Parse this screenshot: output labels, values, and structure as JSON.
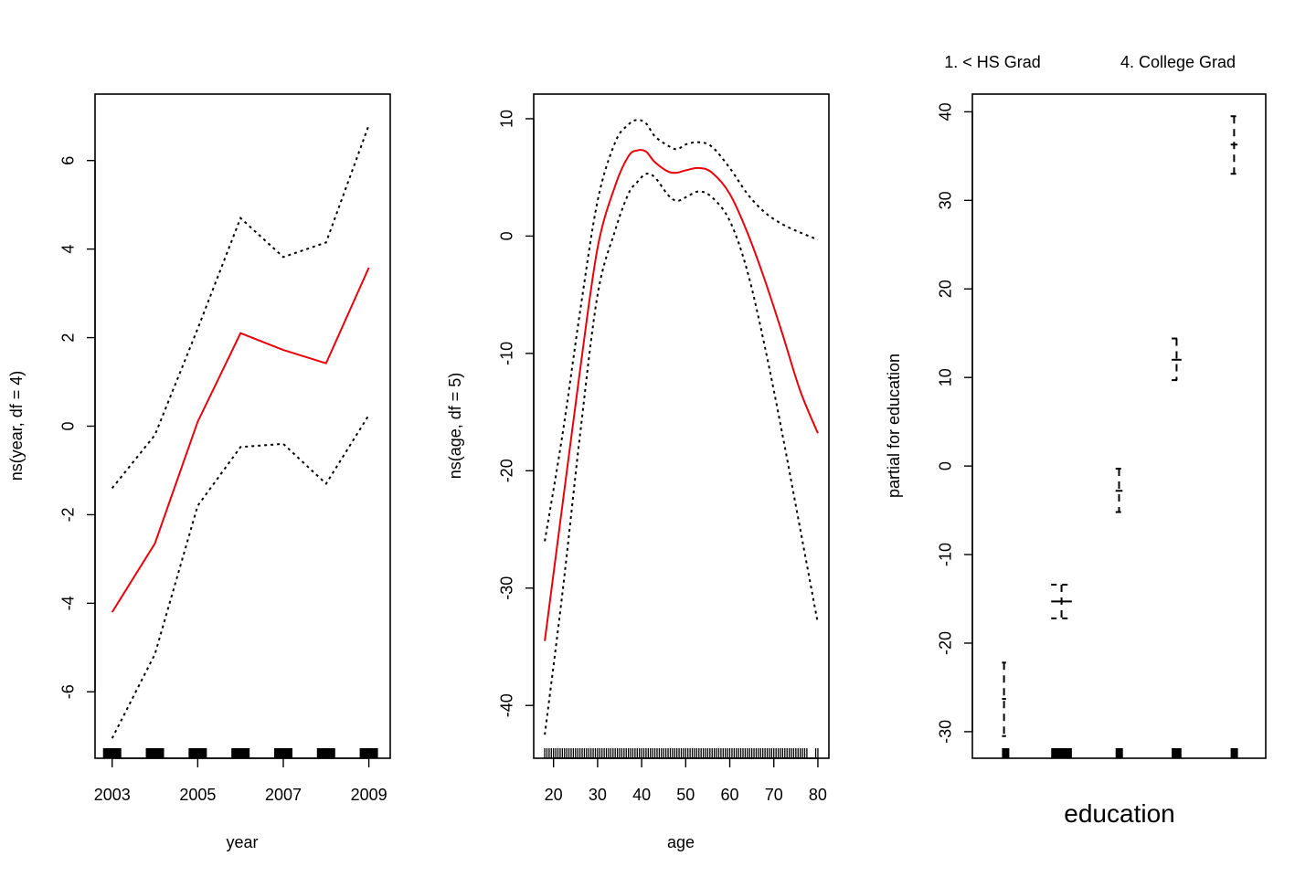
{
  "chart_data": [
    {
      "type": "line",
      "xlabel": "year",
      "ylabel": "ns(year, df = 4)",
      "x_ticks": [
        2003,
        2005,
        2007,
        2009
      ],
      "y_ticks": [
        -6,
        -4,
        -2,
        0,
        2,
        4,
        6
      ],
      "xlim": [
        2002.6,
        2009.5
      ],
      "ylim": [
        -7.5,
        7.5
      ],
      "x": [
        2003,
        2004,
        2005,
        2006,
        2007,
        2008,
        2009
      ],
      "fit": [
        -4.2,
        -2.65,
        0.1,
        2.1,
        1.72,
        1.42,
        3.58
      ],
      "upper": [
        -1.4,
        -0.2,
        2.2,
        4.7,
        3.82,
        4.15,
        6.8
      ],
      "lower": [
        -7.05,
        -5.15,
        -1.8,
        -0.47,
        -0.4,
        -1.3,
        0.25
      ],
      "rug": [
        2003,
        2004,
        2005,
        2006,
        2007,
        2008,
        2009
      ],
      "fit_color": "#e8000b"
    },
    {
      "type": "line",
      "xlabel": "age",
      "ylabel": "ns(age, df = 5)",
      "x_ticks": [
        20,
        30,
        40,
        50,
        60,
        70,
        80
      ],
      "y_ticks": [
        -40,
        -30,
        -20,
        -10,
        0,
        10
      ],
      "xlim": [
        15.5,
        82.5
      ],
      "ylim": [
        -44.5,
        12.1
      ],
      "x": [
        18,
        22,
        26,
        30,
        34,
        37,
        39,
        41,
        43,
        46,
        48,
        50,
        53,
        56,
        60,
        64,
        68,
        72,
        76,
        80
      ],
      "fit": [
        -34.5,
        -23.0,
        -11.5,
        -1.0,
        4.3,
        6.8,
        7.3,
        7.2,
        6.3,
        5.5,
        5.4,
        5.6,
        5.8,
        5.4,
        3.6,
        0.3,
        -3.8,
        -8.4,
        -13.2,
        -16.8
      ],
      "upper": [
        -26.0,
        -17.0,
        -6.5,
        3.0,
        8.0,
        9.5,
        9.9,
        9.6,
        8.5,
        7.7,
        7.4,
        7.8,
        8.0,
        7.6,
        5.8,
        3.6,
        2.0,
        1.0,
        0.3,
        -0.3
      ],
      "lower": [
        -42.5,
        -30.5,
        -17.0,
        -5.0,
        0.5,
        3.6,
        4.6,
        5.3,
        5.0,
        3.5,
        3.0,
        3.3,
        3.8,
        3.3,
        1.3,
        -3.0,
        -9.5,
        -17.0,
        -25.0,
        -33.0
      ],
      "rug_range": [
        18,
        80
      ],
      "rug_tick_at": [
        80
      ],
      "fit_color": "#e8000b"
    },
    {
      "type": "scatter",
      "title_labels": [
        "1. < HS Grad",
        "4. College Grad"
      ],
      "xlabel": "education",
      "ylabel": "partial for education",
      "y_ticks": [
        -30,
        -20,
        -10,
        0,
        10,
        20,
        30,
        40
      ],
      "xlim": [
        0.45,
        5.55
      ],
      "ylim": [
        -33.0,
        42.0
      ],
      "levels": [
        {
          "level": 1,
          "value": -26.3,
          "upper": -22.2,
          "lower": -30.5
        },
        {
          "level": 2,
          "value": -15.3,
          "upper": -13.4,
          "lower": -17.2
        },
        {
          "level": 3,
          "value": -2.8,
          "upper": -0.3,
          "lower": -5.2
        },
        {
          "level": 4,
          "value": 12.0,
          "upper": 14.4,
          "lower": 9.7
        },
        {
          "level": 5,
          "value": 36.3,
          "upper": 39.5,
          "lower": 33.0
        }
      ],
      "level_widths": [
        0.07,
        0.36,
        0.12,
        0.17,
        0.12
      ]
    }
  ]
}
